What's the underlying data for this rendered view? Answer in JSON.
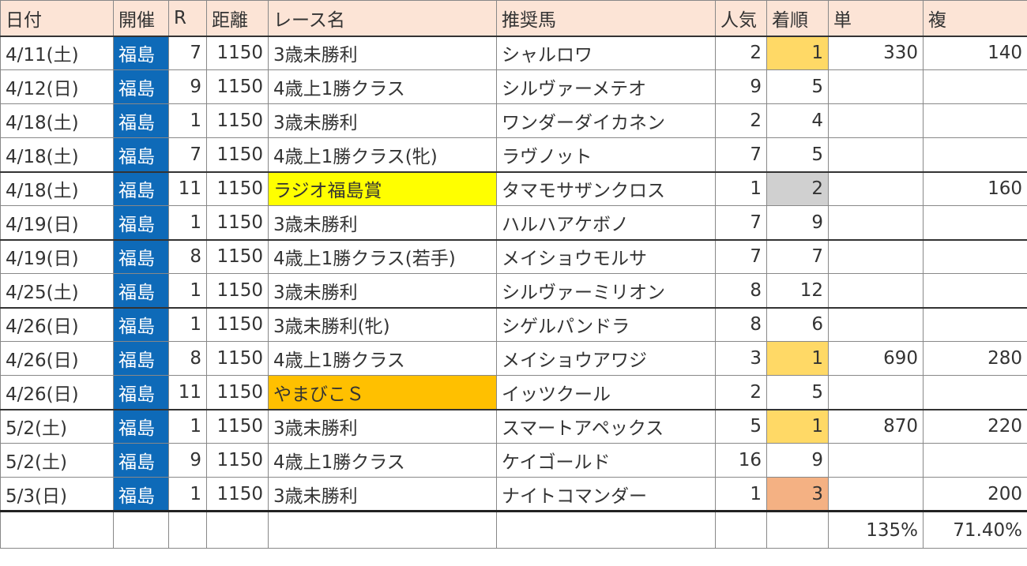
{
  "headers": [
    "日付",
    "開催",
    "R",
    "距離",
    "レース名",
    "推奨馬",
    "人気",
    "着順",
    "単",
    "複"
  ],
  "rows": [
    {
      "date": "4/11(土)",
      "venue": "福島",
      "r": "7",
      "dist": "1150",
      "race": "3歳未勝利",
      "horse": "シャルロワ",
      "pop": "2",
      "place": "1",
      "win": "330",
      "show": "140"
    },
    {
      "date": "4/12(日)",
      "venue": "福島",
      "r": "9",
      "dist": "1150",
      "race": "4歳上1勝クラス",
      "horse": "シルヴァーメテオ",
      "pop": "9",
      "place": "5",
      "win": "",
      "show": ""
    },
    {
      "date": "4/18(土)",
      "venue": "福島",
      "r": "1",
      "dist": "1150",
      "race": "3歳未勝利",
      "horse": "ワンダーダイカネン",
      "pop": "2",
      "place": "4",
      "win": "",
      "show": ""
    },
    {
      "date": "4/18(土)",
      "venue": "福島",
      "r": "7",
      "dist": "1150",
      "race": "4歳上1勝クラス(牝)",
      "horse": "ラヴノット",
      "pop": "7",
      "place": "5",
      "win": "",
      "show": ""
    },
    {
      "date": "4/18(土)",
      "venue": "福島",
      "r": "11",
      "dist": "1150",
      "race": "ラジオ福島賞",
      "horse": "タマモサザンクロス",
      "pop": "1",
      "place": "2",
      "win": "",
      "show": "160"
    },
    {
      "date": "4/19(日)",
      "venue": "福島",
      "r": "1",
      "dist": "1150",
      "race": "3歳未勝利",
      "horse": "ハルハアケボノ",
      "pop": "7",
      "place": "9",
      "win": "",
      "show": ""
    },
    {
      "date": "4/19(日)",
      "venue": "福島",
      "r": "8",
      "dist": "1150",
      "race": "4歳上1勝クラス(若手)",
      "horse": "メイショウモルサ",
      "pop": "7",
      "place": "7",
      "win": "",
      "show": ""
    },
    {
      "date": "4/25(土)",
      "venue": "福島",
      "r": "1",
      "dist": "1150",
      "race": "3歳未勝利",
      "horse": "シルヴァーミリオン",
      "pop": "8",
      "place": "12",
      "win": "",
      "show": ""
    },
    {
      "date": "4/26(日)",
      "venue": "福島",
      "r": "1",
      "dist": "1150",
      "race": "3歳未勝利(牝)",
      "horse": "シゲルパンドラ",
      "pop": "8",
      "place": "6",
      "win": "",
      "show": ""
    },
    {
      "date": "4/26(日)",
      "venue": "福島",
      "r": "8",
      "dist": "1150",
      "race": "4歳上1勝クラス",
      "horse": "メイショウアワジ",
      "pop": "3",
      "place": "1",
      "win": "690",
      "show": "280"
    },
    {
      "date": "4/26(日)",
      "venue": "福島",
      "r": "11",
      "dist": "1150",
      "race": "やまびこＳ",
      "horse": "イッツクール",
      "pop": "2",
      "place": "5",
      "win": "",
      "show": ""
    },
    {
      "date": "5/2(土)",
      "venue": "福島",
      "r": "1",
      "dist": "1150",
      "race": "3歳未勝利",
      "horse": "スマートアペックス",
      "pop": "5",
      "place": "1",
      "win": "870",
      "show": "220"
    },
    {
      "date": "5/2(土)",
      "venue": "福島",
      "r": "9",
      "dist": "1150",
      "race": "4歳上1勝クラス",
      "horse": "ケイゴールド",
      "pop": "16",
      "place": "9",
      "win": "",
      "show": ""
    },
    {
      "date": "5/3(日)",
      "venue": "福島",
      "r": "1",
      "dist": "1150",
      "race": "3歳未勝利",
      "horse": "ナイトコマンダー",
      "pop": "1",
      "place": "3",
      "win": "",
      "show": "200"
    }
  ],
  "totals": {
    "win": "135%",
    "show": "71.40%"
  },
  "colors": {
    "header_bg": "#fce4d6",
    "venue_bg": "#0e6ab8",
    "first_place": "#ffd966",
    "second_place": "#d0d0d0",
    "third_place": "#f4b183",
    "race_highlight_radio": "#ffff00",
    "race_highlight_yamabiko": "#ffc000"
  }
}
